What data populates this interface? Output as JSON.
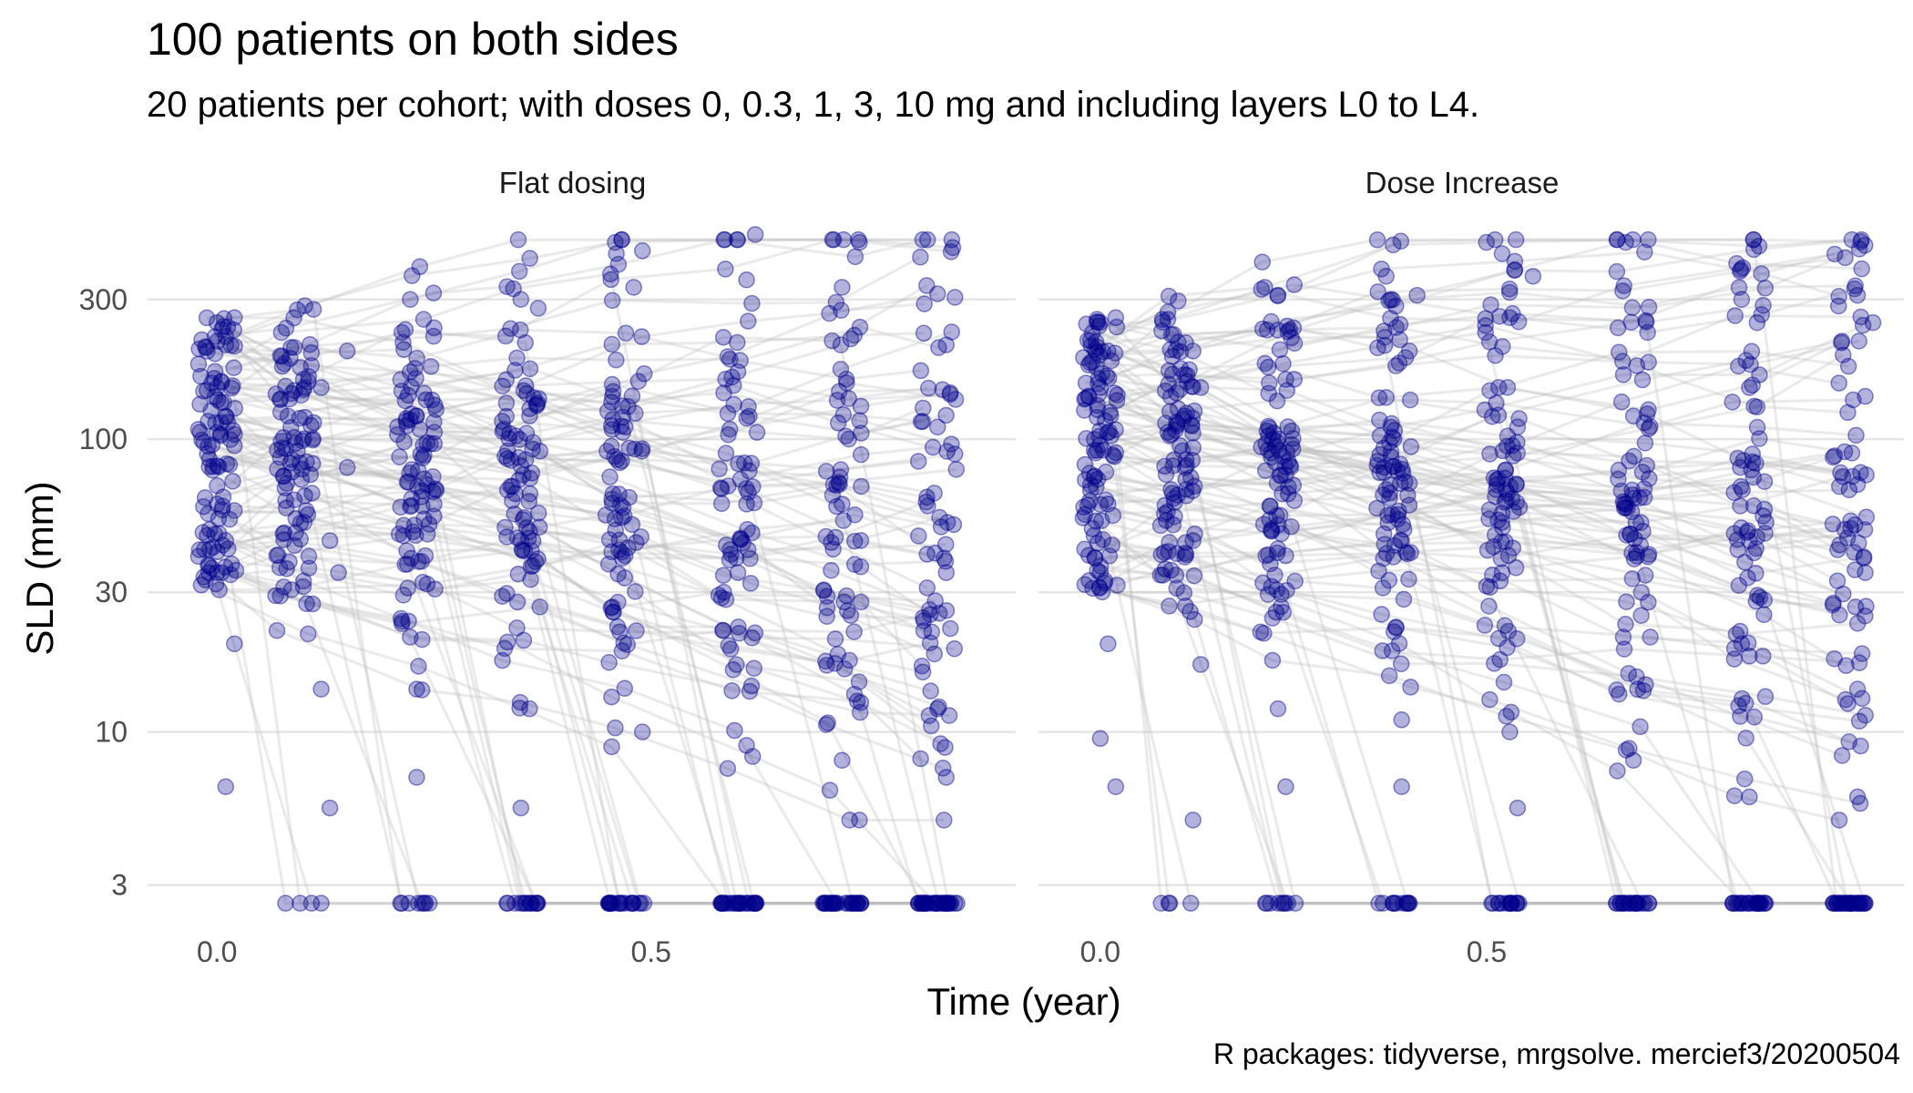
{
  "chart_data": {
    "type": "scatter",
    "title": "100 patients on both sides",
    "subtitle": "20 patients per cohort; with doses 0, 0.3, 1, 3, 10 mg and including layers L0 to L4.",
    "caption": "R packages: tidyverse, mrgsolve. mercief3/20200504",
    "xlabel": "Time (year)",
    "ylabel": "SLD (mm)",
    "y_scale": "log10",
    "ylim": [
      2.2,
      600
    ],
    "y_ticks": [
      3,
      10,
      30,
      100,
      300
    ],
    "y_tick_labels": [
      "3",
      "10",
      "30",
      "100",
      "300"
    ],
    "x_tick_labels": [
      "0.0",
      "0.5"
    ],
    "grid": true,
    "point_color": "#00008B",
    "line_color": "#bdbdbd",
    "n_patients_per_panel": 100,
    "panels": [
      {
        "label": "Flat dosing",
        "x_ticks": [
          0,
          0.5
        ],
        "xlim": [
          -0.08,
          0.92
        ],
        "visit_times": [
          0,
          0.09,
          0.23,
          0.35,
          0.47,
          0.6,
          0.72,
          0.83
        ],
        "baseline_range": [
          30,
          260
        ],
        "points": [
          {
            "x": 0.0,
            "y": 250
          },
          {
            "x": 0.02,
            "y": 260
          },
          {
            "x": 0.01,
            "y": 210
          },
          {
            "x": 0.0,
            "y": 150
          },
          {
            "x": 0.01,
            "y": 120
          },
          {
            "x": 0.02,
            "y": 95
          },
          {
            "x": 0.0,
            "y": 60
          },
          {
            "x": 0.01,
            "y": 45
          },
          {
            "x": 0.0,
            "y": 35
          },
          {
            "x": 0.02,
            "y": 20
          },
          {
            "x": 0.01,
            "y": 6.5
          },
          {
            "x": 0.15,
            "y": 200
          },
          {
            "x": 0.12,
            "y": 150
          },
          {
            "x": 0.15,
            "y": 80
          },
          {
            "x": 0.13,
            "y": 45
          },
          {
            "x": 0.14,
            "y": 35
          },
          {
            "x": 0.12,
            "y": 14
          },
          {
            "x": 0.13,
            "y": 5.5
          },
          {
            "x": 0.12,
            "y": 2.6
          },
          {
            "x": 0.25,
            "y": 240
          },
          {
            "x": 0.23,
            "y": 120
          },
          {
            "x": 0.25,
            "y": 60
          },
          {
            "x": 0.24,
            "y": 40
          },
          {
            "x": 0.23,
            "y": 14
          },
          {
            "x": 0.23,
            "y": 7
          },
          {
            "x": 0.24,
            "y": 2.6
          },
          {
            "x": 0.35,
            "y": 300
          },
          {
            "x": 0.37,
            "y": 280
          },
          {
            "x": 0.36,
            "y": 120
          },
          {
            "x": 0.35,
            "y": 45
          },
          {
            "x": 0.36,
            "y": 12
          },
          {
            "x": 0.35,
            "y": 5.5
          },
          {
            "x": 0.36,
            "y": 2.6
          },
          {
            "x": 0.46,
            "y": 430
          },
          {
            "x": 0.49,
            "y": 440
          },
          {
            "x": 0.48,
            "y": 330
          },
          {
            "x": 0.47,
            "y": 110
          },
          {
            "x": 0.47,
            "y": 40
          },
          {
            "x": 0.49,
            "y": 10
          },
          {
            "x": 0.47,
            "y": 2.6
          },
          {
            "x": 0.62,
            "y": 500
          },
          {
            "x": 0.61,
            "y": 350
          },
          {
            "x": 0.6,
            "y": 170
          },
          {
            "x": 0.61,
            "y": 60
          },
          {
            "x": 0.6,
            "y": 35
          },
          {
            "x": 0.61,
            "y": 9
          },
          {
            "x": 0.6,
            "y": 2.6
          },
          {
            "x": 0.74,
            "y": 470
          },
          {
            "x": 0.72,
            "y": 330
          },
          {
            "x": 0.73,
            "y": 220
          },
          {
            "x": 0.72,
            "y": 60
          },
          {
            "x": 0.73,
            "y": 25
          },
          {
            "x": 0.72,
            "y": 8
          },
          {
            "x": 0.74,
            "y": 5
          },
          {
            "x": 0.73,
            "y": 2.6
          },
          {
            "x": 0.85,
            "y": 305
          },
          {
            "x": 0.84,
            "y": 210
          },
          {
            "x": 0.83,
            "y": 110
          },
          {
            "x": 0.84,
            "y": 35
          },
          {
            "x": 0.83,
            "y": 12
          },
          {
            "x": 0.84,
            "y": 7
          },
          {
            "x": 0.85,
            "y": 2.6
          }
        ]
      },
      {
        "label": "Dose Increase",
        "x_ticks": [
          0,
          0.5
        ],
        "xlim": [
          -0.08,
          1.04
        ],
        "visit_times": [
          0,
          0.1,
          0.23,
          0.38,
          0.52,
          0.69,
          0.84,
          0.97
        ],
        "baseline_range": [
          30,
          260
        ],
        "points": [
          {
            "x": 0.0,
            "y": 250
          },
          {
            "x": 0.02,
            "y": 260
          },
          {
            "x": 0.01,
            "y": 200
          },
          {
            "x": 0.0,
            "y": 150
          },
          {
            "x": 0.02,
            "y": 90
          },
          {
            "x": 0.01,
            "y": 60
          },
          {
            "x": 0.0,
            "y": 35
          },
          {
            "x": 0.01,
            "y": 20
          },
          {
            "x": 0.0,
            "y": 9.5
          },
          {
            "x": 0.02,
            "y": 6.5
          },
          {
            "x": 0.12,
            "y": 200
          },
          {
            "x": 0.13,
            "y": 150
          },
          {
            "x": 0.11,
            "y": 80
          },
          {
            "x": 0.12,
            "y": 45
          },
          {
            "x": 0.13,
            "y": 17
          },
          {
            "x": 0.12,
            "y": 5
          },
          {
            "x": 0.09,
            "y": 2.6
          },
          {
            "x": 0.25,
            "y": 240
          },
          {
            "x": 0.24,
            "y": 160
          },
          {
            "x": 0.23,
            "y": 100
          },
          {
            "x": 0.24,
            "y": 40
          },
          {
            "x": 0.23,
            "y": 12
          },
          {
            "x": 0.24,
            "y": 6.5
          },
          {
            "x": 0.22,
            "y": 2.6
          },
          {
            "x": 0.37,
            "y": 360
          },
          {
            "x": 0.41,
            "y": 310
          },
          {
            "x": 0.4,
            "y": 200
          },
          {
            "x": 0.38,
            "y": 100
          },
          {
            "x": 0.39,
            "y": 45
          },
          {
            "x": 0.38,
            "y": 22
          },
          {
            "x": 0.39,
            "y": 11
          },
          {
            "x": 0.39,
            "y": 6.5
          },
          {
            "x": 0.38,
            "y": 2.6
          },
          {
            "x": 0.52,
            "y": 430
          },
          {
            "x": 0.56,
            "y": 360
          },
          {
            "x": 0.53,
            "y": 260
          },
          {
            "x": 0.54,
            "y": 110
          },
          {
            "x": 0.52,
            "y": 35
          },
          {
            "x": 0.53,
            "y": 10
          },
          {
            "x": 0.54,
            "y": 5.5
          },
          {
            "x": 0.53,
            "y": 2.6
          },
          {
            "x": 0.68,
            "y": 470
          },
          {
            "x": 0.67,
            "y": 240
          },
          {
            "x": 0.69,
            "y": 120
          },
          {
            "x": 0.68,
            "y": 60
          },
          {
            "x": 0.7,
            "y": 25
          },
          {
            "x": 0.69,
            "y": 8
          },
          {
            "x": 0.69,
            "y": 2.6
          },
          {
            "x": 0.83,
            "y": 300
          },
          {
            "x": 0.85,
            "y": 250
          },
          {
            "x": 0.84,
            "y": 150
          },
          {
            "x": 0.84,
            "y": 45
          },
          {
            "x": 0.83,
            "y": 20
          },
          {
            "x": 0.84,
            "y": 6
          },
          {
            "x": 0.84,
            "y": 2.6
          },
          {
            "x": 0.98,
            "y": 310
          },
          {
            "x": 1.0,
            "y": 250
          },
          {
            "x": 0.99,
            "y": 140
          },
          {
            "x": 0.98,
            "y": 70
          },
          {
            "x": 0.99,
            "y": 35
          },
          {
            "x": 0.98,
            "y": 14
          },
          {
            "x": 0.98,
            "y": 6
          },
          {
            "x": 0.99,
            "y": 2.6
          }
        ]
      }
    ]
  }
}
